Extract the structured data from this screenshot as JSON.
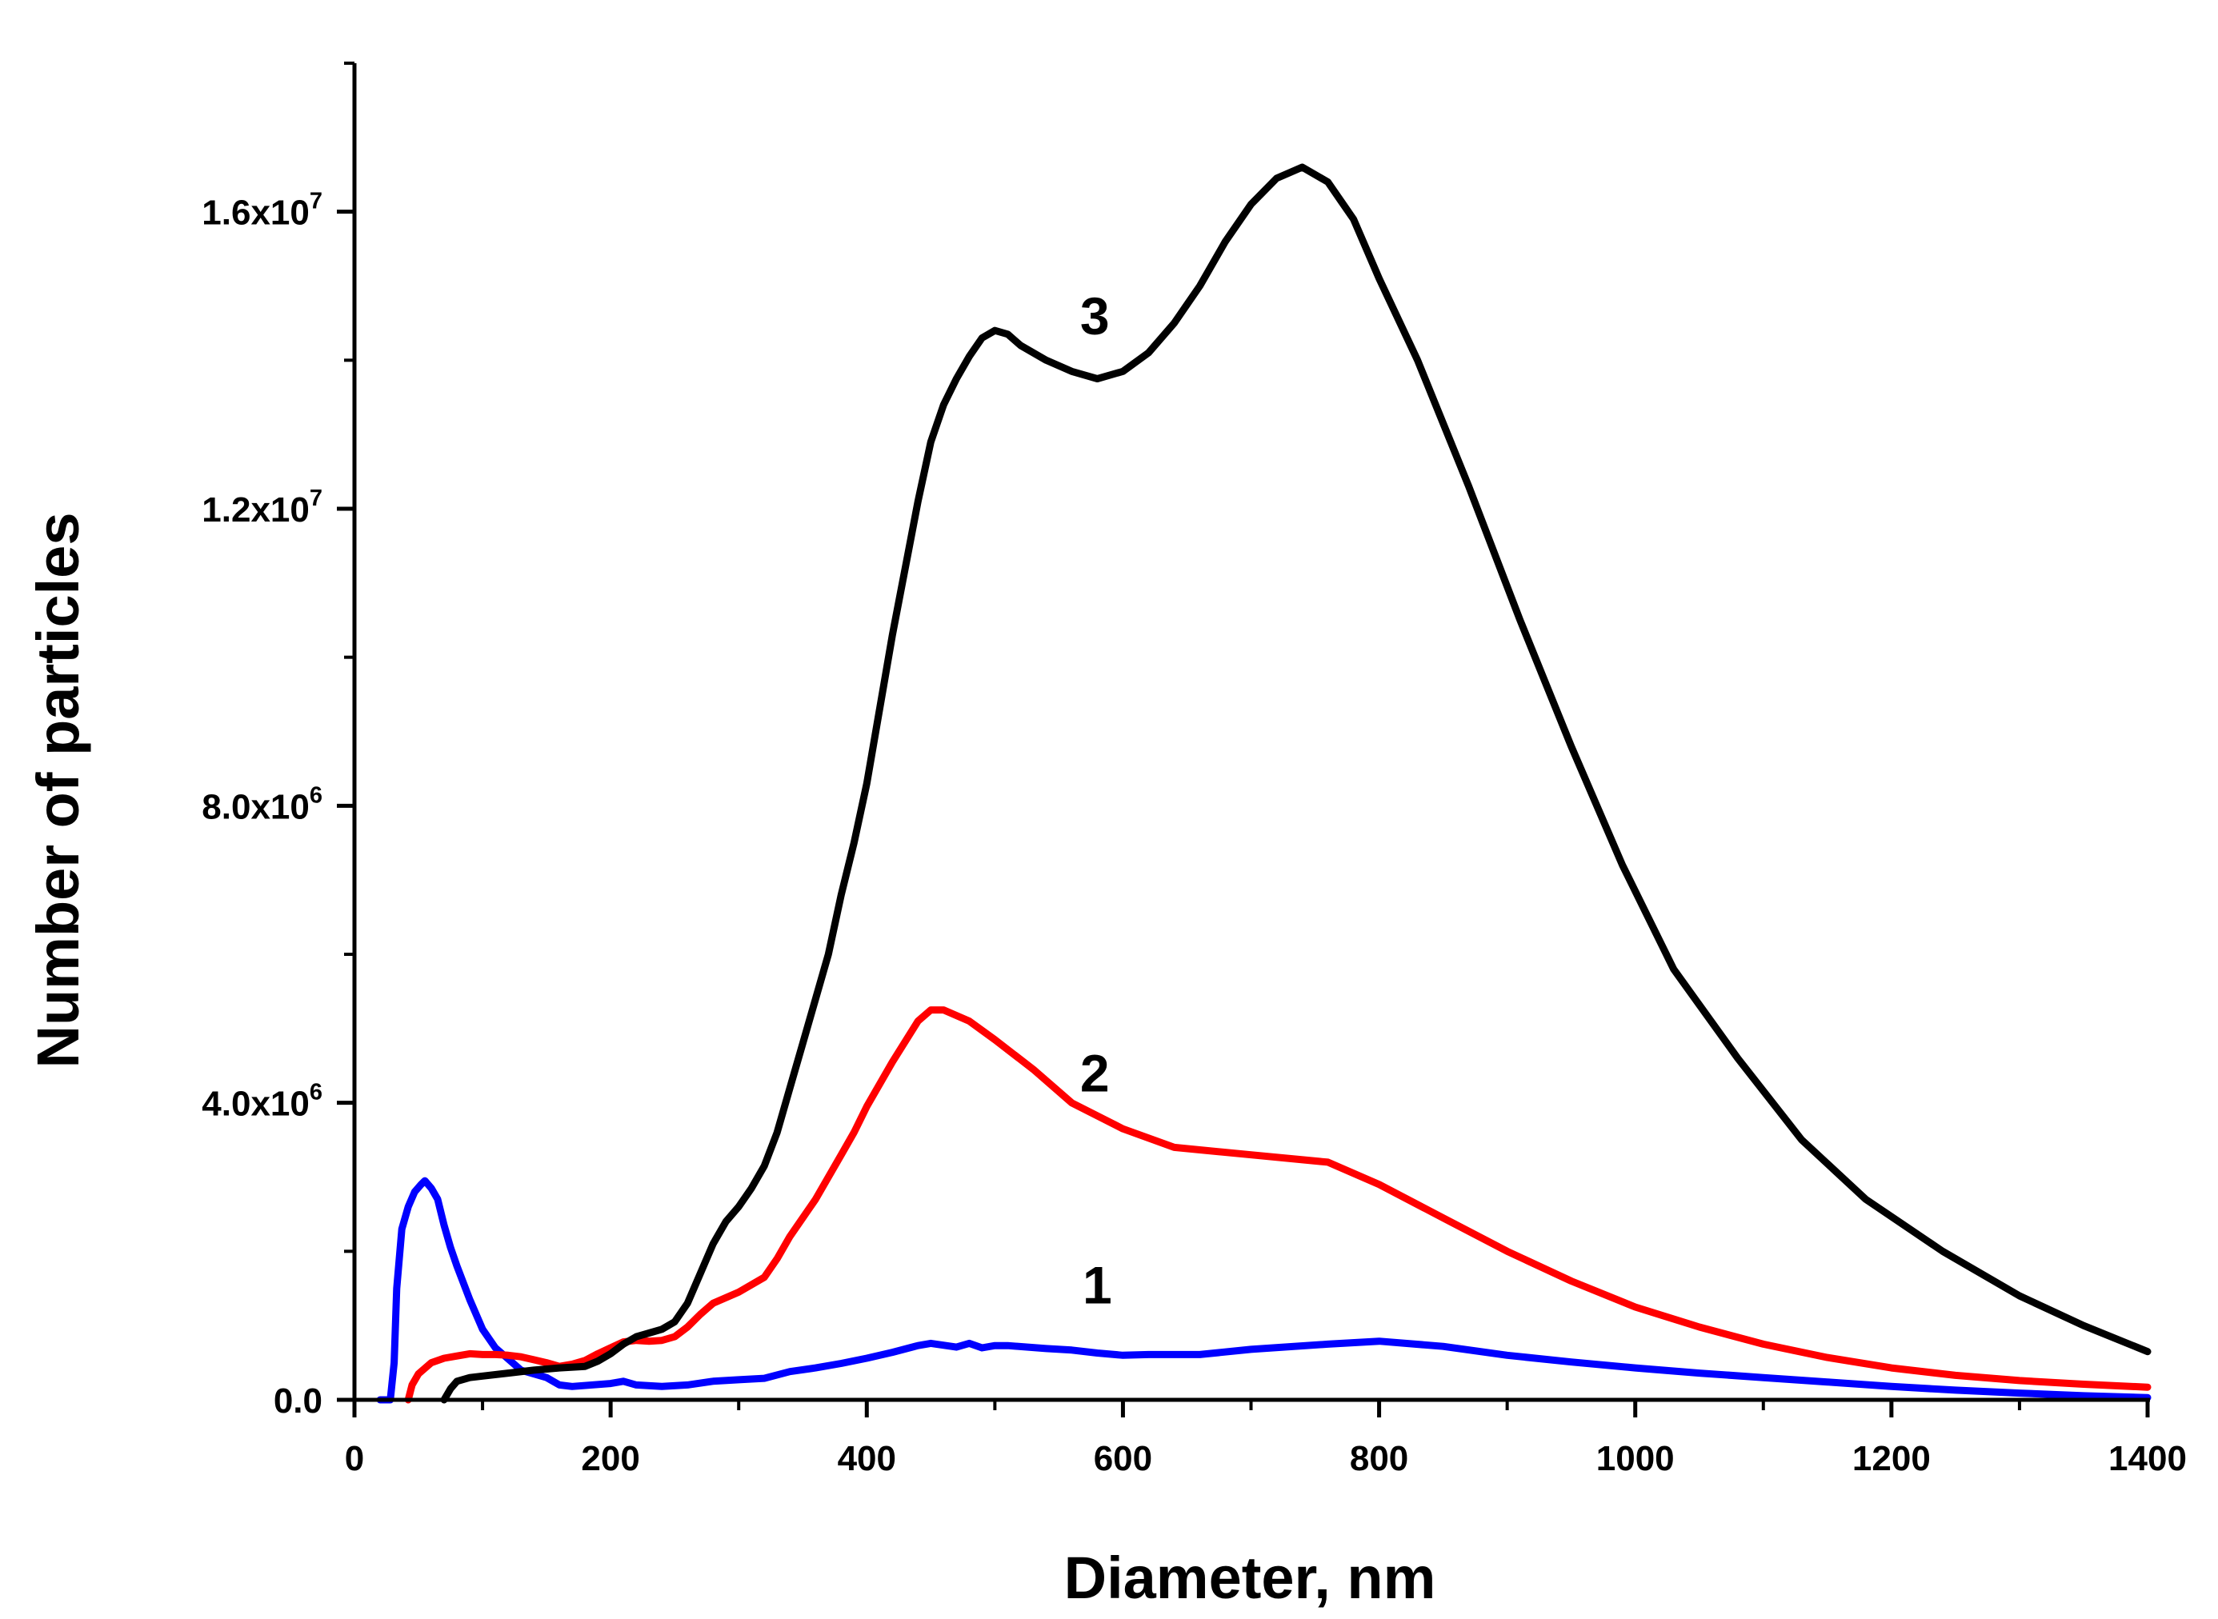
{
  "chart_data": {
    "type": "line",
    "title": "",
    "xlabel": "Diameter, nm",
    "ylabel": "Number of particles",
    "xlim": [
      0,
      1400
    ],
    "ylim": [
      0,
      18000000
    ],
    "grid": false,
    "x_ticks": [
      {
        "value": 0,
        "label": "0"
      },
      {
        "value": 200,
        "label": "200"
      },
      {
        "value": 400,
        "label": "400"
      },
      {
        "value": 600,
        "label": "600"
      },
      {
        "value": 800,
        "label": "800"
      },
      {
        "value": 1000,
        "label": "1000"
      },
      {
        "value": 1200,
        "label": "1200"
      },
      {
        "value": 1400,
        "label": "1400"
      }
    ],
    "x_minor_ticks": [
      100,
      300,
      500,
      700,
      900,
      1100,
      1300
    ],
    "y_ticks": [
      {
        "value": 0,
        "mantissa": "0.0",
        "exponent": ""
      },
      {
        "value": 4000000,
        "mantissa": "4.0x10",
        "exponent": "6"
      },
      {
        "value": 8000000,
        "mantissa": "8.0x10",
        "exponent": "6"
      },
      {
        "value": 12000000,
        "mantissa": "1.2x10",
        "exponent": "7"
      },
      {
        "value": 16000000,
        "mantissa": "1.6x10",
        "exponent": "7"
      }
    ],
    "y_minor_ticks": [
      2000000,
      6000000,
      10000000,
      14000000,
      18000000
    ],
    "series": [
      {
        "name": "1",
        "color": "#0000ff",
        "label_at": [
          580,
          1300000
        ],
        "points": [
          [
            20,
            0
          ],
          [
            28,
            0
          ],
          [
            31,
            500000
          ],
          [
            33,
            1500000
          ],
          [
            37,
            2300000
          ],
          [
            42,
            2600000
          ],
          [
            47,
            2800000
          ],
          [
            52,
            2900000
          ],
          [
            55,
            2950000
          ],
          [
            60,
            2850000
          ],
          [
            65,
            2700000
          ],
          [
            70,
            2350000
          ],
          [
            75,
            2050000
          ],
          [
            80,
            1800000
          ],
          [
            90,
            1350000
          ],
          [
            100,
            950000
          ],
          [
            110,
            700000
          ],
          [
            120,
            550000
          ],
          [
            130,
            400000
          ],
          [
            150,
            300000
          ],
          [
            160,
            200000
          ],
          [
            170,
            180000
          ],
          [
            200,
            220000
          ],
          [
            210,
            250000
          ],
          [
            220,
            200000
          ],
          [
            240,
            180000
          ],
          [
            260,
            200000
          ],
          [
            280,
            250000
          ],
          [
            300,
            270000
          ],
          [
            320,
            290000
          ],
          [
            340,
            380000
          ],
          [
            360,
            430000
          ],
          [
            380,
            490000
          ],
          [
            400,
            560000
          ],
          [
            420,
            640000
          ],
          [
            440,
            730000
          ],
          [
            450,
            760000
          ],
          [
            470,
            710000
          ],
          [
            480,
            760000
          ],
          [
            490,
            700000
          ],
          [
            500,
            730000
          ],
          [
            510,
            730000
          ],
          [
            540,
            690000
          ],
          [
            560,
            670000
          ],
          [
            580,
            630000
          ],
          [
            600,
            600000
          ],
          [
            620,
            610000
          ],
          [
            660,
            610000
          ],
          [
            700,
            680000
          ],
          [
            760,
            750000
          ],
          [
            800,
            790000
          ],
          [
            850,
            720000
          ],
          [
            900,
            600000
          ],
          [
            950,
            510000
          ],
          [
            1000,
            430000
          ],
          [
            1050,
            360000
          ],
          [
            1100,
            300000
          ],
          [
            1150,
            240000
          ],
          [
            1200,
            180000
          ],
          [
            1250,
            130000
          ],
          [
            1300,
            90000
          ],
          [
            1350,
            55000
          ],
          [
            1400,
            30000
          ]
        ]
      },
      {
        "name": "2",
        "color": "#ff0000",
        "label_at": [
          578,
          4150000
        ],
        "points": [
          [
            42,
            0
          ],
          [
            45,
            200000
          ],
          [
            50,
            350000
          ],
          [
            60,
            500000
          ],
          [
            70,
            560000
          ],
          [
            80,
            590000
          ],
          [
            90,
            620000
          ],
          [
            100,
            610000
          ],
          [
            110,
            610000
          ],
          [
            120,
            600000
          ],
          [
            130,
            580000
          ],
          [
            140,
            540000
          ],
          [
            150,
            500000
          ],
          [
            160,
            450000
          ],
          [
            170,
            480000
          ],
          [
            180,
            530000
          ],
          [
            190,
            620000
          ],
          [
            200,
            700000
          ],
          [
            210,
            780000
          ],
          [
            220,
            800000
          ],
          [
            230,
            790000
          ],
          [
            240,
            800000
          ],
          [
            250,
            850000
          ],
          [
            260,
            980000
          ],
          [
            270,
            1150000
          ],
          [
            280,
            1300000
          ],
          [
            300,
            1450000
          ],
          [
            320,
            1650000
          ],
          [
            330,
            1900000
          ],
          [
            340,
            2200000
          ],
          [
            360,
            2700000
          ],
          [
            380,
            3300000
          ],
          [
            390,
            3600000
          ],
          [
            400,
            3950000
          ],
          [
            420,
            4550000
          ],
          [
            440,
            5100000
          ],
          [
            450,
            5250000
          ],
          [
            460,
            5250000
          ],
          [
            480,
            5100000
          ],
          [
            500,
            4850000
          ],
          [
            530,
            4450000
          ],
          [
            560,
            4000000
          ],
          [
            600,
            3650000
          ],
          [
            640,
            3400000
          ],
          [
            700,
            3300000
          ],
          [
            760,
            3200000
          ],
          [
            800,
            2900000
          ],
          [
            850,
            2450000
          ],
          [
            900,
            2000000
          ],
          [
            950,
            1600000
          ],
          [
            1000,
            1250000
          ],
          [
            1050,
            980000
          ],
          [
            1100,
            750000
          ],
          [
            1150,
            570000
          ],
          [
            1200,
            430000
          ],
          [
            1250,
            330000
          ],
          [
            1300,
            260000
          ],
          [
            1350,
            210000
          ],
          [
            1400,
            170000
          ]
        ]
      },
      {
        "name": "3",
        "color": "#000000",
        "label_at": [
          578,
          14350000
        ],
        "points": [
          [
            70,
            0
          ],
          [
            75,
            150000
          ],
          [
            80,
            250000
          ],
          [
            90,
            300000
          ],
          [
            100,
            320000
          ],
          [
            120,
            360000
          ],
          [
            140,
            400000
          ],
          [
            160,
            430000
          ],
          [
            180,
            450000
          ],
          [
            190,
            520000
          ],
          [
            200,
            620000
          ],
          [
            210,
            750000
          ],
          [
            220,
            850000
          ],
          [
            230,
            900000
          ],
          [
            240,
            950000
          ],
          [
            250,
            1050000
          ],
          [
            260,
            1300000
          ],
          [
            270,
            1700000
          ],
          [
            280,
            2100000
          ],
          [
            290,
            2400000
          ],
          [
            300,
            2600000
          ],
          [
            310,
            2850000
          ],
          [
            320,
            3150000
          ],
          [
            330,
            3600000
          ],
          [
            340,
            4200000
          ],
          [
            350,
            4800000
          ],
          [
            360,
            5400000
          ],
          [
            370,
            6000000
          ],
          [
            380,
            6800000
          ],
          [
            390,
            7500000
          ],
          [
            400,
            8300000
          ],
          [
            410,
            9300000
          ],
          [
            420,
            10300000
          ],
          [
            430,
            11200000
          ],
          [
            440,
            12100000
          ],
          [
            450,
            12900000
          ],
          [
            460,
            13400000
          ],
          [
            470,
            13750000
          ],
          [
            480,
            14050000
          ],
          [
            490,
            14300000
          ],
          [
            500,
            14400000
          ],
          [
            510,
            14350000
          ],
          [
            520,
            14200000
          ],
          [
            540,
            14000000
          ],
          [
            560,
            13850000
          ],
          [
            580,
            13750000
          ],
          [
            600,
            13850000
          ],
          [
            620,
            14100000
          ],
          [
            640,
            14500000
          ],
          [
            660,
            15000000
          ],
          [
            680,
            15600000
          ],
          [
            700,
            16100000
          ],
          [
            720,
            16450000
          ],
          [
            740,
            16600000
          ],
          [
            760,
            16400000
          ],
          [
            780,
            15900000
          ],
          [
            800,
            15100000
          ],
          [
            830,
            14000000
          ],
          [
            870,
            12300000
          ],
          [
            910,
            10500000
          ],
          [
            950,
            8800000
          ],
          [
            990,
            7200000
          ],
          [
            1030,
            5800000
          ],
          [
            1080,
            4600000
          ],
          [
            1130,
            3500000
          ],
          [
            1180,
            2700000
          ],
          [
            1240,
            2000000
          ],
          [
            1300,
            1400000
          ],
          [
            1350,
            1000000
          ],
          [
            1400,
            650000
          ]
        ]
      }
    ]
  }
}
